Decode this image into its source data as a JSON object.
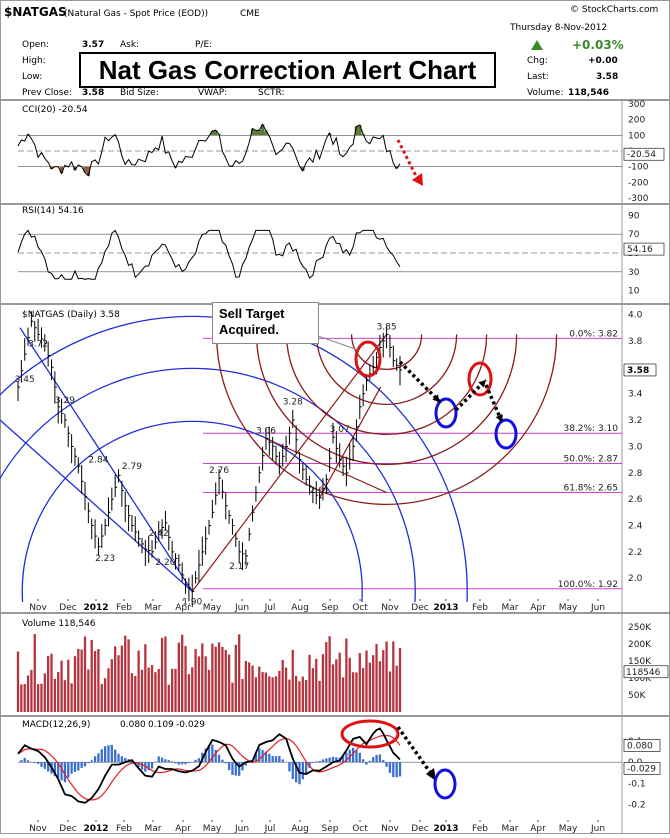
{
  "header": {
    "symbol": "$NATGAS",
    "description": "(Natural Gas - Spot Price (EOD))",
    "exchange": "CME",
    "date": "Thursday   8-Nov-2012",
    "change_pct": "+0.03%",
    "watermark": "© StockCharts.com",
    "fields": {
      "open_label": "Open:",
      "open_value": "3.57",
      "ask_label": "Ask:",
      "pe_label": "P/E:",
      "high_label": "High:",
      "low_label": "Low:",
      "prev_close_label": "Prev Close:",
      "prev_close_value": "3.58",
      "bid_size_label": "Bid Size:",
      "vwap_label": "VWAP:",
      "sctr_label": "SCTR:",
      "chg_label": "Chg:",
      "chg_value": "+0.00",
      "last_label": "Last:",
      "last_value": "3.58",
      "volume_label": "Volume:",
      "volume_value": "118,546"
    }
  },
  "overlay_title": "Nat Gas Correction Alert Chart",
  "callout": "Sell Target Acquired.",
  "colors": {
    "price": "#000000",
    "fib_line": "#cc44cc",
    "fan_arc": "#8b1a1a",
    "blue_arc": "#1f2fd8",
    "circle_red": "#e01010",
    "circle_blue": "#1010e0",
    "volume": "#b5343e",
    "macd": "#000000",
    "signal": "#e02020",
    "histogram": "#3a6fd0",
    "cci_fill": "#5a7a3a",
    "cci_neg": "#8a5a3a"
  },
  "chart_data": [
    {
      "panel": "CCI",
      "type": "line",
      "legend": "CCI(20) -20.54",
      "last_value": "-20.54",
      "y_ticks": [
        300,
        200,
        100,
        0,
        -100,
        -200,
        -300
      ],
      "reference_lines": [
        100,
        -100
      ],
      "ylim": [
        -300,
        300
      ]
    },
    {
      "panel": "RSI",
      "type": "line",
      "legend": "RSI(14) 54.16",
      "last_value": "54.16",
      "y_ticks": [
        90,
        70,
        50,
        30,
        10
      ],
      "reference_lines": [
        70,
        30
      ],
      "ylim": [
        0,
        100
      ]
    },
    {
      "panel": "Price",
      "type": "line",
      "legend": "$NATGAS (Daily) 3.58",
      "last_value": "3.58",
      "ylim": [
        1.85,
        4.05
      ],
      "y_ticks": [
        4.0,
        3.8,
        3.6,
        3.4,
        3.2,
        3.0,
        2.8,
        2.6,
        2.4,
        2.2,
        2.0
      ],
      "x_months": [
        "Nov",
        "Dec",
        "2012",
        "Feb",
        "Mar",
        "Apr",
        "May",
        "Jun",
        "Jul",
        "Aug",
        "Sep",
        "Oct",
        "Nov",
        "Dec",
        "2013",
        "Feb",
        "Mar",
        "Apr",
        "May",
        "Jun"
      ],
      "series_points": [
        [
          0,
          3.45
        ],
        [
          2,
          3.7
        ],
        [
          4,
          3.95
        ],
        [
          6,
          3.85
        ],
        [
          8,
          3.78
        ],
        [
          10,
          3.6
        ],
        [
          12,
          3.3
        ],
        [
          14,
          3.2
        ],
        [
          16,
          3.0
        ],
        [
          18,
          2.85
        ],
        [
          20,
          2.62
        ],
        [
          22,
          2.4
        ],
        [
          24,
          2.24
        ],
        [
          26,
          2.4
        ],
        [
          28,
          2.6
        ],
        [
          30,
          2.78
        ],
        [
          32,
          2.55
        ],
        [
          34,
          2.4
        ],
        [
          36,
          2.3
        ],
        [
          38,
          2.22
        ],
        [
          40,
          2.2
        ],
        [
          42,
          2.35
        ],
        [
          44,
          2.42
        ],
        [
          46,
          2.2
        ],
        [
          48,
          2.1
        ],
        [
          50,
          1.95
        ],
        [
          52,
          1.9
        ],
        [
          54,
          2.1
        ],
        [
          56,
          2.3
        ],
        [
          58,
          2.5
        ],
        [
          60,
          2.76
        ],
        [
          62,
          2.55
        ],
        [
          64,
          2.4
        ],
        [
          66,
          2.2
        ],
        [
          68,
          2.17
        ],
        [
          70,
          2.5
        ],
        [
          72,
          2.8
        ],
        [
          74,
          3.06
        ],
        [
          76,
          3.0
        ],
        [
          78,
          2.85
        ],
        [
          80,
          3.0
        ],
        [
          82,
          3.2
        ],
        [
          84,
          2.9
        ],
        [
          86,
          2.75
        ],
        [
          88,
          2.65
        ],
        [
          90,
          2.61
        ],
        [
          92,
          2.75
        ],
        [
          94,
          3.07
        ],
        [
          96,
          2.9
        ],
        [
          98,
          2.8
        ],
        [
          100,
          3.0
        ],
        [
          102,
          3.3
        ],
        [
          104,
          3.5
        ],
        [
          106,
          3.6
        ],
        [
          108,
          3.75
        ],
        [
          110,
          3.85
        ],
        [
          112,
          3.65
        ],
        [
          114,
          3.58
        ]
      ],
      "point_labels": [
        {
          "x": 2,
          "y": 3.45,
          "text": "3.45"
        },
        {
          "x": 6,
          "y": 3.72,
          "text": "3.72"
        },
        {
          "x": 14,
          "y": 3.29,
          "text": "3.29"
        },
        {
          "x": 24,
          "y": 2.84,
          "text": "2.84"
        },
        {
          "x": 26,
          "y": 2.23,
          "text": "2.23"
        },
        {
          "x": 34,
          "y": 2.79,
          "text": "2.79"
        },
        {
          "x": 42,
          "y": 2.42,
          "text": "2.42"
        },
        {
          "x": 44,
          "y": 2.2,
          "text": "2.20"
        },
        {
          "x": 52,
          "y": 1.9,
          "text": "1.90"
        },
        {
          "x": 60,
          "y": 2.76,
          "text": "2.76"
        },
        {
          "x": 66,
          "y": 2.17,
          "text": "2.17"
        },
        {
          "x": 74,
          "y": 3.06,
          "text": "3.06"
        },
        {
          "x": 82,
          "y": 3.28,
          "text": "3.28"
        },
        {
          "x": 90,
          "y": 2.61,
          "text": "2.61"
        },
        {
          "x": 96,
          "y": 3.07,
          "text": "3.07"
        },
        {
          "x": 110,
          "y": 3.85,
          "text": "3.85"
        }
      ],
      "fib_levels": [
        {
          "value": 3.82,
          "label": "0.0%: 3.82"
        },
        {
          "value": 3.1,
          "label": "38.2%: 3.10"
        },
        {
          "value": 2.87,
          "label": "50.0%: 2.87"
        },
        {
          "value": 2.65,
          "label": "61.8%: 2.65"
        },
        {
          "value": 1.92,
          "label": "100.0%: 1.92"
        }
      ]
    },
    {
      "panel": "Volume",
      "type": "bar",
      "legend": "Volume 118,546",
      "last_value": "118546",
      "y_ticks": [
        "250K",
        "200K",
        "150K",
        "100K",
        "50K"
      ],
      "ylim": [
        0,
        280000
      ]
    },
    {
      "panel": "MACD",
      "type": "line",
      "legend_name": "MACD(12,26,9)",
      "macd_value": "0.080",
      "signal_value": "0.109",
      "histogram_value": "-0.029",
      "y_ticks": [
        0.1,
        0.0,
        -0.1,
        -0.2
      ],
      "ylim": [
        -0.25,
        0.2
      ],
      "x_months": [
        "Nov",
        "Dec",
        "2012",
        "Feb",
        "Mar",
        "Apr",
        "May",
        "Jun",
        "Jul",
        "Aug",
        "Sep",
        "Oct",
        "Nov",
        "Dec",
        "2013",
        "Feb",
        "Mar",
        "Apr",
        "May",
        "Jun"
      ]
    }
  ]
}
